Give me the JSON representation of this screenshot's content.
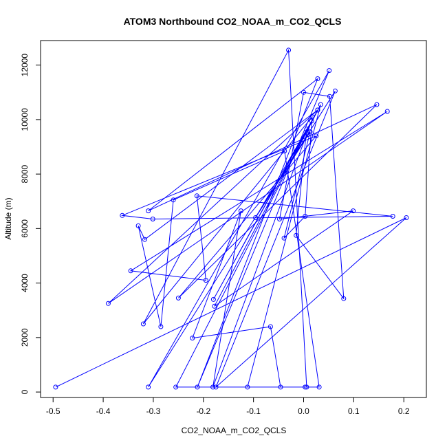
{
  "chart_data": {
    "type": "line",
    "title": "ATOM3 Northbound CO2_NOAA_m_CO2_QCLS",
    "xlabel": "CO2_NOAA_m_CO2_QCLS",
    "ylabel": "Altitude (m)",
    "xlim": [
      -0.525,
      0.245
    ],
    "ylim": [
      -200,
      12900
    ],
    "xticks": [
      -0.5,
      -0.4,
      -0.3,
      -0.2,
      -0.1,
      0.0,
      0.1,
      0.2
    ],
    "xtick_labels": [
      "-0.5",
      "-0.4",
      "-0.3",
      "-0.2",
      "-0.1",
      "0.0",
      "0.1",
      "0.2"
    ],
    "yticks": [
      0,
      2000,
      4000,
      6000,
      8000,
      10000,
      12000
    ],
    "ytick_labels": [
      "0",
      "2000",
      "4000",
      "6000",
      "8000",
      "10000",
      "12000"
    ],
    "grid": false,
    "line_style": "lines-and-points",
    "color": "#0000ff",
    "series": [
      {
        "x": [
          -0.495,
          0.205,
          -0.175,
          0.063,
          -0.31,
          0.051,
          -0.212,
          0.028,
          -0.31,
          0.146,
          -0.25,
          0.025,
          -0.362,
          -0.301,
          0.178,
          -0.213,
          -0.195,
          -0.345,
          0.167,
          -0.39,
          0.028,
          -0.18,
          0.006,
          -0.015,
          0.08,
          0.052,
          0.0,
          -0.048,
          0.099,
          -0.178,
          0.028,
          -0.317,
          -0.33,
          -0.285,
          -0.26,
          -0.038,
          0.031,
          -0.046,
          -0.066,
          -0.222,
          -0.125,
          -0.181,
          0.016,
          -0.096,
          0.013,
          -0.039,
          0.003,
          0.017,
          -0.32,
          -0.03,
          0.006,
          -0.255,
          0.034,
          -0.112,
          0.003
        ],
        "y": [
          180,
          6400,
          180,
          11050,
          180,
          11800,
          180,
          11500,
          6650,
          10550,
          3450,
          9400,
          6480,
          6350,
          6450,
          7200,
          4100,
          4450,
          10300,
          3250,
          10350,
          3400,
          9650,
          5750,
          3430,
          10850,
          11000,
          6350,
          6650,
          3150,
          10350,
          5600,
          6100,
          2400,
          7050,
          8850,
          180,
          180,
          2400,
          1980,
          6650,
          180,
          9950,
          6400,
          9550,
          5650,
          6450,
          10100,
          2500,
          12550,
          180,
          180,
          10550,
          180,
          180
        ]
      }
    ]
  }
}
